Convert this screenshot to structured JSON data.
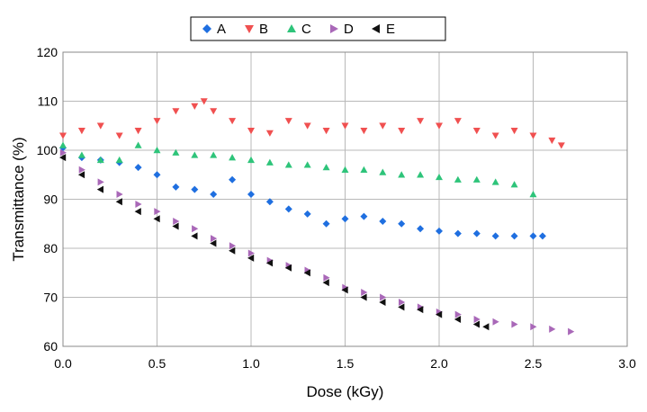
{
  "chart_data": {
    "type": "scatter",
    "title": "",
    "xlabel": "Dose  (kGy)",
    "ylabel": "Transmittance  (%)",
    "xlim": [
      0,
      3
    ],
    "ylim": [
      60,
      120
    ],
    "x_ticks": [
      "0.0",
      "0.5",
      "1.0",
      "1.5",
      "2.0",
      "2.5",
      "3.0"
    ],
    "y_ticks": [
      "60",
      "70",
      "80",
      "90",
      "100",
      "110",
      "120"
    ],
    "grid": true,
    "legend_position": "top-center",
    "series": [
      {
        "name": "A",
        "marker": "diamond",
        "color": "#1f6fe0",
        "x": [
          0.0,
          0.1,
          0.2,
          0.3,
          0.4,
          0.5,
          0.6,
          0.7,
          0.8,
          0.9,
          1.0,
          1.1,
          1.2,
          1.3,
          1.4,
          1.5,
          1.6,
          1.7,
          1.8,
          1.9,
          2.0,
          2.1,
          2.2,
          2.3,
          2.4,
          2.5,
          2.55
        ],
        "y": [
          100.5,
          98.5,
          98,
          97.5,
          96.5,
          95,
          92.5,
          92,
          91,
          94,
          91,
          89.5,
          88,
          87,
          85,
          86,
          86.5,
          85.5,
          85,
          84,
          83.5,
          83,
          83,
          82.5,
          82.5,
          82.5,
          82.5
        ]
      },
      {
        "name": "B",
        "marker": "triangle-down",
        "color": "#f05050",
        "x": [
          0.0,
          0.1,
          0.2,
          0.3,
          0.4,
          0.5,
          0.6,
          0.7,
          0.75,
          0.8,
          0.9,
          1.0,
          1.1,
          1.2,
          1.3,
          1.4,
          1.5,
          1.6,
          1.7,
          1.8,
          1.9,
          2.0,
          2.1,
          2.2,
          2.3,
          2.4,
          2.5,
          2.6,
          2.65
        ],
        "y": [
          103,
          104,
          105,
          103,
          104,
          106,
          108,
          109,
          110,
          108,
          106,
          104,
          103.5,
          106,
          105,
          104,
          105,
          104,
          105,
          104,
          106,
          105,
          106,
          104,
          103,
          104,
          103,
          102,
          101
        ]
      },
      {
        "name": "C",
        "marker": "triangle-up",
        "color": "#2ec47a",
        "x": [
          0.0,
          0.1,
          0.2,
          0.3,
          0.4,
          0.5,
          0.6,
          0.7,
          0.8,
          0.9,
          1.0,
          1.1,
          1.2,
          1.3,
          1.4,
          1.5,
          1.6,
          1.7,
          1.8,
          1.9,
          2.0,
          2.1,
          2.2,
          2.3,
          2.4,
          2.5
        ],
        "y": [
          101,
          99,
          98,
          98,
          101,
          100,
          99.5,
          99,
          99,
          98.5,
          98,
          97.5,
          97,
          97,
          96.5,
          96,
          96,
          95.5,
          95,
          95,
          94.5,
          94,
          94,
          93.5,
          93,
          91
        ]
      },
      {
        "name": "D",
        "marker": "triangle-right",
        "color": "#a968b8",
        "x": [
          0.0,
          0.1,
          0.2,
          0.3,
          0.4,
          0.5,
          0.6,
          0.7,
          0.8,
          0.9,
          1.0,
          1.1,
          1.2,
          1.3,
          1.4,
          1.5,
          1.6,
          1.7,
          1.8,
          1.9,
          2.0,
          2.1,
          2.2,
          2.3,
          2.4,
          2.5,
          2.6,
          2.7
        ],
        "y": [
          99.5,
          96,
          93.5,
          91,
          89,
          87.5,
          85.5,
          84,
          82,
          80.5,
          79,
          77.5,
          76.5,
          75.5,
          74,
          72,
          71,
          70,
          69,
          68,
          67,
          66.5,
          65.5,
          65,
          64.5,
          64,
          63.5,
          63
        ]
      },
      {
        "name": "E",
        "marker": "triangle-left",
        "color": "#111111",
        "x": [
          0.0,
          0.1,
          0.2,
          0.3,
          0.4,
          0.5,
          0.6,
          0.7,
          0.8,
          0.9,
          1.0,
          1.1,
          1.2,
          1.3,
          1.4,
          1.5,
          1.6,
          1.7,
          1.8,
          1.9,
          2.0,
          2.1,
          2.2,
          2.25
        ],
        "y": [
          98.5,
          95,
          92,
          89.5,
          87.5,
          86,
          84.5,
          82.5,
          81,
          79.5,
          78,
          77,
          76,
          75,
          73,
          71.5,
          70,
          69,
          68,
          67.5,
          66.5,
          65.5,
          64.5,
          64
        ]
      }
    ]
  }
}
